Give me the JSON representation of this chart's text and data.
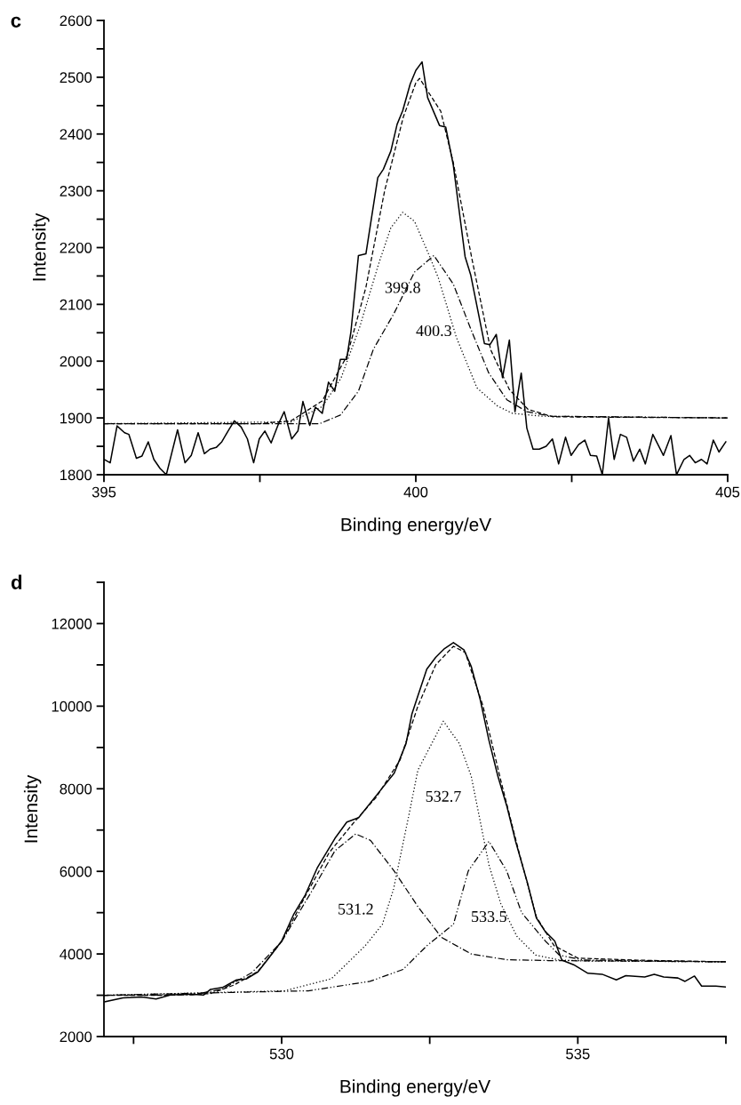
{
  "chart_data": [
    {
      "type": "line",
      "title": "c",
      "xlabel": "Binding energy/eV",
      "ylabel": "Intensity",
      "xlim": [
        395,
        405
      ],
      "xticks": [
        395,
        {
          "value": 397.5,
          "label": null
        },
        400,
        {
          "value": 402.5,
          "label": null
        },
        405
      ],
      "ylim": [
        1800,
        2600
      ],
      "yticks": [
        1800,
        {
          "value": 1850,
          "label": null
        },
        1900,
        {
          "value": 1950,
          "label": null
        },
        2000,
        {
          "value": 2050,
          "label": null
        },
        2100,
        {
          "value": 2150,
          "label": null
        },
        2200,
        {
          "value": 2250,
          "label": null
        },
        2300,
        {
          "value": 2350,
          "label": null
        },
        2400,
        {
          "value": 2450,
          "label": null
        },
        2500,
        {
          "value": 2550,
          "label": null
        },
        2600
      ],
      "grid": false,
      "legend": false,
      "series": [
        {
          "color": "#000000",
          "line_style": "solid",
          "x": [
            395.0,
            395.1,
            395.21,
            395.33,
            395.4,
            395.52,
            395.61,
            395.71,
            395.8,
            395.9,
            396.0,
            396.18,
            396.3,
            396.4,
            396.51,
            396.61,
            396.7,
            396.8,
            396.89,
            396.99,
            397.09,
            397.2,
            397.3,
            397.4,
            397.49,
            397.58,
            397.68,
            397.8,
            397.89,
            398.01,
            398.11,
            398.19,
            398.3,
            398.39,
            398.5,
            398.6,
            398.7,
            398.79,
            398.89,
            398.96,
            399.08,
            399.2,
            399.39,
            399.48,
            399.6,
            399.7,
            399.79,
            399.91,
            400.0,
            400.1,
            400.19,
            400.38,
            400.48,
            400.6,
            400.79,
            400.88,
            401.1,
            401.19,
            401.29,
            401.39,
            401.5,
            401.59,
            401.69,
            401.78,
            401.88,
            401.98,
            402.09,
            402.19,
            402.29,
            402.4,
            402.49,
            402.61,
            402.71,
            402.8,
            402.9,
            402.99,
            403.09,
            403.18,
            403.28,
            403.38,
            403.49,
            403.59,
            403.68,
            403.8,
            403.97,
            404.09,
            404.18,
            404.3,
            404.39,
            404.48,
            404.58,
            404.67,
            404.77,
            404.86,
            404.97
          ],
          "values": [
            1827,
            1821,
            1886,
            1874,
            1871,
            1829,
            1833,
            1858,
            1827,
            1811,
            1800,
            1879,
            1821,
            1834,
            1874,
            1837,
            1845,
            1848,
            1858,
            1877,
            1895,
            1884,
            1863,
            1821,
            1863,
            1877,
            1856,
            1890,
            1911,
            1863,
            1877,
            1929,
            1887,
            1919,
            1908,
            1963,
            1947,
            2003,
            2003,
            2052,
            2186,
            2189,
            2323,
            2338,
            2370,
            2417,
            2441,
            2488,
            2512,
            2527,
            2464,
            2415,
            2412,
            2346,
            2184,
            2152,
            2031,
            2029,
            2047,
            1971,
            2037,
            1911,
            1979,
            1882,
            1845,
            1845,
            1850,
            1863,
            1819,
            1866,
            1834,
            1853,
            1861,
            1834,
            1833,
            1800,
            1900,
            1827,
            1871,
            1866,
            1824,
            1845,
            1819,
            1871,
            1834,
            1869,
            1800,
            1827,
            1834,
            1821,
            1827,
            1819,
            1861,
            1840,
            1858
          ]
        },
        {
          "color": "#000000",
          "line_style": "dashed",
          "x": [
            395,
            397.5,
            398.0,
            398.5,
            398.9,
            399.2,
            399.5,
            399.8,
            400.0,
            400.06,
            400.4,
            400.6,
            400.9,
            401.2,
            401.5,
            401.8,
            402.2,
            405
          ],
          "values": [
            1890,
            1890,
            1895,
            1930,
            2010,
            2130,
            2300,
            2430,
            2490,
            2498,
            2440,
            2350,
            2180,
            2020,
            1950,
            1915,
            1902,
            1900
          ]
        },
        {
          "color": "#000000",
          "line_style": "dotted",
          "x": [
            395,
            398.0,
            398.5,
            398.8,
            399.1,
            399.4,
            399.6,
            399.79,
            399.98,
            400.2,
            400.36,
            400.65,
            400.98,
            401.31,
            401.55,
            402.03,
            405
          ],
          "values": [
            1890,
            1893,
            1920,
            1970,
            2060,
            2170,
            2235,
            2262,
            2246,
            2190,
            2147,
            2042,
            1953,
            1921,
            1908,
            1903,
            1900
          ]
        },
        {
          "color": "#000000",
          "line_style": "dashdot",
          "x": [
            395,
            398.46,
            398.79,
            399.08,
            399.32,
            399.65,
            399.98,
            400.29,
            400.6,
            400.88,
            401.17,
            401.46,
            401.78,
            402.16,
            405
          ],
          "values": [
            1890,
            1890,
            1905,
            1947,
            2021,
            2084,
            2157,
            2186,
            2136,
            2057,
            1979,
            1932,
            1911,
            1903,
            1900
          ]
        }
      ],
      "annotations": [
        "399.8",
        "400.3"
      ]
    },
    {
      "type": "line",
      "title": "d",
      "xlabel": "Binding energy/eV",
      "ylabel": "Intensity",
      "xlim": [
        527,
        537.5
      ],
      "xticks": [
        {
          "value": 527.5,
          "label": null
        },
        530,
        {
          "value": 532.5,
          "label": null
        },
        535,
        {
          "value": 537.5,
          "label": null
        }
      ],
      "ylim": [
        2000,
        13000
      ],
      "yticks": [
        2000,
        {
          "value": 3000,
          "label": null
        },
        4000,
        {
          "value": 5000,
          "label": null
        },
        6000,
        {
          "value": 7000,
          "label": null
        },
        8000,
        {
          "value": 9000,
          "label": null
        },
        10000,
        {
          "value": 11000,
          "label": null
        },
        12000,
        {
          "value": 13000,
          "label": null
        }
      ],
      "grid": false,
      "legend": false,
      "series": [
        {
          "color": "#000000",
          "line_style": "solid",
          "x": [
            527.02,
            527.32,
            527.64,
            527.88,
            528.12,
            528.44,
            528.68,
            528.8,
            529.0,
            529.24,
            529.4,
            529.6,
            529.77,
            530.0,
            530.2,
            530.4,
            530.6,
            530.9,
            531.1,
            531.3,
            531.7,
            531.9,
            532.1,
            532.2,
            532.3,
            532.45,
            532.6,
            532.75,
            532.9,
            533.08,
            533.2,
            533.35,
            533.5,
            533.65,
            533.8,
            533.95,
            534.15,
            534.3,
            534.45,
            534.61,
            534.73,
            534.93,
            535.17,
            535.41,
            535.65,
            535.81,
            536.13,
            536.29,
            536.45,
            536.69,
            536.81,
            536.97,
            537.09,
            537.33,
            537.5
          ],
          "values": [
            2843,
            2935,
            2959,
            2911,
            3004,
            3028,
            3004,
            3142,
            3187,
            3373,
            3394,
            3566,
            3877,
            4315,
            4950,
            5433,
            6080,
            6799,
            7194,
            7301,
            8019,
            8379,
            9096,
            9816,
            10250,
            10894,
            11180,
            11396,
            11540,
            11360,
            10965,
            10174,
            9170,
            8308,
            7588,
            6726,
            5722,
            4870,
            4543,
            4315,
            3853,
            3739,
            3532,
            3509,
            3373,
            3476,
            3444,
            3509,
            3444,
            3418,
            3336,
            3465,
            3222,
            3222,
            3200
          ]
        },
        {
          "color": "#000000",
          "line_style": "dashed",
          "x": [
            527,
            528,
            528.8,
            529.2,
            529.6,
            530.0,
            530.4,
            530.8,
            531.2,
            531.6,
            532.0,
            532.3,
            532.6,
            532.9,
            533.1,
            533.4,
            533.7,
            534.0,
            534.3,
            534.6,
            535.0,
            536,
            537.5
          ],
          "values": [
            3000,
            3000,
            3040,
            3250,
            3580,
            4300,
            5400,
            6450,
            7150,
            7800,
            8700,
            10000,
            11000,
            11450,
            11300,
            10000,
            8200,
            6500,
            4900,
            4200,
            3900,
            3850,
            3810
          ]
        },
        {
          "color": "#000000",
          "line_style": "dashdot",
          "x": [
            527,
            528.5,
            529.0,
            529.5,
            530.0,
            530.5,
            530.9,
            531.25,
            531.5,
            531.9,
            532.3,
            532.7,
            533.2,
            533.8,
            534.5,
            537.5
          ],
          "values": [
            3000,
            3010,
            3150,
            3550,
            4300,
            5500,
            6500,
            6907,
            6750,
            6008,
            5146,
            4400,
            4000,
            3860,
            3840,
            3810
          ]
        },
        {
          "color": "#000000",
          "line_style": "dotted",
          "x": [
            527,
            530.05,
            530.84,
            531.41,
            531.7,
            531.89,
            532.15,
            532.3,
            532.73,
            533.0,
            533.2,
            533.35,
            533.5,
            533.7,
            533.97,
            534.29,
            534.69,
            535.2,
            537.5
          ],
          "values": [
            3000,
            3108,
            3400,
            4198,
            4715,
            5577,
            7373,
            8450,
            9636,
            9096,
            8308,
            7230,
            6153,
            5217,
            4429,
            3970,
            3853,
            3830,
            3810
          ]
        },
        {
          "color": "#000000",
          "line_style": "dashdotdot",
          "x": [
            527,
            530.45,
            531.49,
            532.05,
            532.45,
            532.9,
            533.15,
            533.5,
            533.8,
            534.05,
            534.45,
            534.69,
            535.09,
            537.5
          ],
          "values": [
            3000,
            3108,
            3336,
            3625,
            4198,
            4715,
            6008,
            6726,
            6008,
            5002,
            4315,
            3970,
            3853,
            3810
          ]
        }
      ],
      "annotations": [
        "531.2",
        "532.7",
        "533.5"
      ]
    }
  ]
}
